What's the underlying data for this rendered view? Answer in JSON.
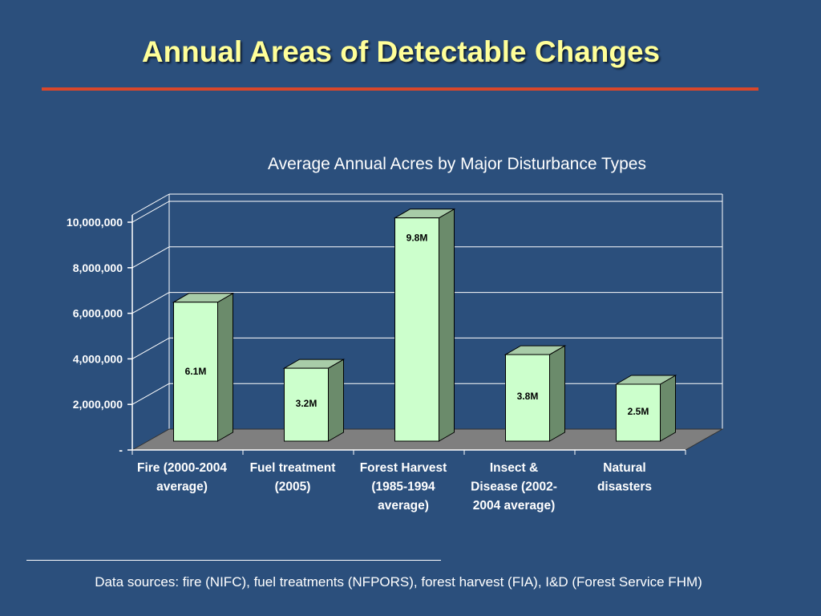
{
  "slide": {
    "title": "Annual Areas of Detectable Changes",
    "source_note": "Data sources: fire (NIFC), fuel treatments (NFPORS), forest harvest (FIA), I&D (Forest Service FHM)"
  },
  "colors": {
    "background": "#2b4f7c",
    "title": "#ffff99",
    "rule": "#d9472a",
    "bar_front": "#ccffcc",
    "bar_side": "#6b8b6b",
    "bar_top": "#a8cca8",
    "floor": "#7f7f7f"
  },
  "chart_data": {
    "type": "bar",
    "title": "Average Annual Acres by Major Disturbance Types",
    "xlabel": "",
    "ylabel": "",
    "ylim": [
      0,
      10000000
    ],
    "yticks": [
      {
        "value": 0,
        "label": "-"
      },
      {
        "value": 2000000,
        "label": "2,000,000"
      },
      {
        "value": 4000000,
        "label": "4,000,000"
      },
      {
        "value": 6000000,
        "label": "6,000,000"
      },
      {
        "value": 8000000,
        "label": "8,000,000"
      },
      {
        "value": 10000000,
        "label": "10,000,000"
      }
    ],
    "categories": [
      [
        "Fire (2000-2004",
        "average)"
      ],
      [
        "Fuel treatment",
        "(2005)"
      ],
      [
        "Forest Harvest",
        "(1985-1994",
        "average)"
      ],
      [
        "Insect &",
        "Disease (2002-",
        "2004 average)"
      ],
      [
        "Natural",
        "disasters"
      ]
    ],
    "values": [
      6100000,
      3200000,
      9800000,
      3800000,
      2500000
    ],
    "data_labels": [
      "6.1M",
      "3.2M",
      "9.8M",
      "3.8M",
      "2.5M"
    ],
    "grid": true,
    "legend": "none"
  }
}
